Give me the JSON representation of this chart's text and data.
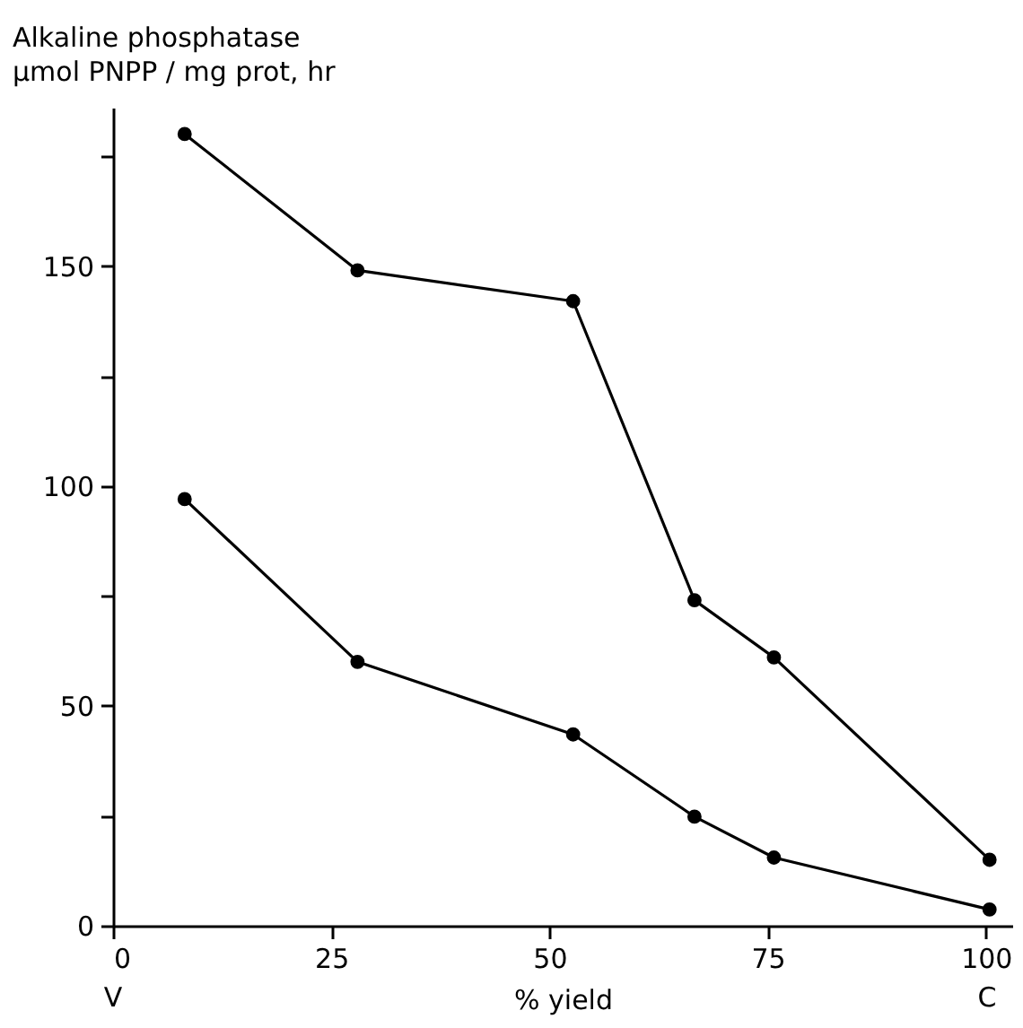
{
  "chart_data": {
    "type": "line",
    "title": "Alkaline phosphatase",
    "subtitle": "μmol PNPP / mg prot, hr",
    "xlabel": "% yield",
    "x": [
      8.2,
      28,
      52.7,
      66.6,
      75.7,
      100.4
    ],
    "series": [
      {
        "color": "#000000",
        "values": [
          180,
          149,
          142,
          74,
          61,
          15
        ]
      },
      {
        "color": "#000000",
        "values": [
          97,
          60,
          43.5,
          24.8,
          15.5,
          3.7
        ]
      }
    ],
    "xlim": [
      0,
      103
    ],
    "xticks": [
      0,
      25,
      50,
      75,
      100
    ],
    "ylim": [
      0,
      186
    ],
    "yticks": [
      0,
      {
        "value": 25,
        "label": null
      },
      50,
      {
        "value": 75,
        "label": null
      },
      100,
      {
        "value": 125,
        "label": null
      },
      150,
      {
        "value": 175,
        "label": null
      }
    ],
    "grid": false,
    "marker": "circle",
    "line_style": "solid",
    "annotations": [
      "V",
      "C"
    ]
  }
}
